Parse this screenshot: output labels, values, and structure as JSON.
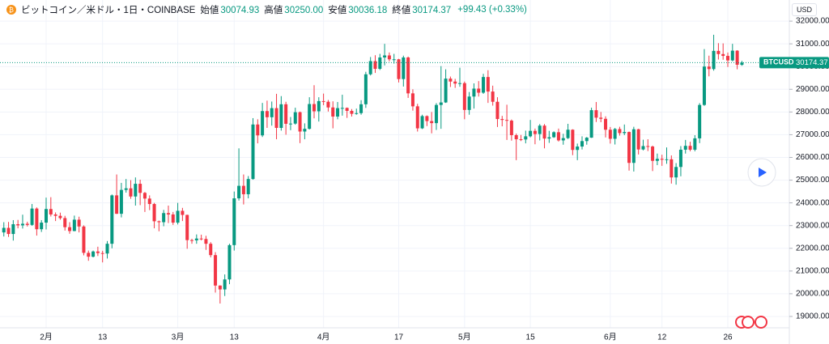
{
  "chart_data": {
    "type": "candlestick",
    "title": "ビットコイン／米ドル・1日・COINBASE",
    "ohlc_header": [
      {
        "label": "始値",
        "value": "30074.93"
      },
      {
        "label": "高値",
        "value": "30250.00"
      },
      {
        "label": "安値",
        "value": "30036.18"
      },
      {
        "label": "終値",
        "value": "30174.37"
      }
    ],
    "change": "+99.43 (+0.33%)",
    "currency": "USD",
    "symbol": "BTCUSD",
    "up_color": "#089981",
    "down_color": "#f23645",
    "grid": true,
    "ylim": [
      18500,
      32930
    ],
    "yticks": [
      {
        "value": 19000,
        "label": "19000.00"
      },
      {
        "value": 20000,
        "label": "20000.00"
      },
      {
        "value": 21000,
        "label": "21000.00"
      },
      {
        "value": 22000,
        "label": "22000.00"
      },
      {
        "value": 23000,
        "label": "23000.00"
      },
      {
        "value": 24000,
        "label": "24000.00"
      },
      {
        "value": 25000,
        "label": "25000.00"
      },
      {
        "value": 26000,
        "label": "26000.00"
      },
      {
        "value": 27000,
        "label": "27000.00"
      },
      {
        "value": 28000,
        "label": "28000.00"
      },
      {
        "value": 29000,
        "label": "29000.00"
      },
      {
        "value": 30000,
        "label": "30000.00"
      },
      {
        "value": 31000,
        "label": "31000.00"
      },
      {
        "value": 32000,
        "label": "32000.00"
      }
    ],
    "categories": [
      null,
      null,
      null,
      null,
      null,
      null,
      null,
      null,
      null,
      "2月",
      null,
      null,
      null,
      null,
      null,
      null,
      null,
      null,
      null,
      null,
      null,
      "13",
      null,
      null,
      null,
      null,
      null,
      null,
      null,
      null,
      null,
      null,
      null,
      null,
      null,
      null,
      null,
      "3月",
      null,
      null,
      null,
      null,
      null,
      null,
      null,
      null,
      null,
      null,
      null,
      "13",
      null,
      null,
      null,
      null,
      null,
      null,
      null,
      null,
      null,
      null,
      null,
      null,
      null,
      null,
      null,
      null,
      null,
      null,
      "4月",
      null,
      null,
      null,
      null,
      null,
      null,
      null,
      null,
      null,
      null,
      null,
      null,
      null,
      null,
      null,
      "17",
      null,
      null,
      null,
      null,
      null,
      null,
      null,
      null,
      null,
      null,
      null,
      null,
      null,
      "5月",
      null,
      null,
      null,
      null,
      null,
      null,
      null,
      null,
      null,
      null,
      null,
      null,
      null,
      "15",
      null,
      null,
      null,
      null,
      null,
      null,
      null,
      null,
      null,
      null,
      null,
      null,
      null,
      null,
      null,
      null,
      "6月",
      null,
      null,
      null,
      null,
      null,
      null,
      null,
      null,
      null,
      null,
      "12",
      null,
      null,
      null,
      null,
      null,
      null,
      null,
      null,
      null,
      null,
      null,
      null,
      null,
      "26",
      null,
      null,
      null
    ],
    "open": [
      22700,
      22900,
      22630,
      23060,
      23010,
      23080,
      23030,
      23750,
      22840,
      23130,
      23730,
      23490,
      23430,
      23330,
      22930,
      22760,
      23260,
      22960,
      21800,
      21630,
      21860,
      21790,
      21770,
      22200,
      24330,
      23520,
      24570,
      24640,
      24280,
      24840,
      24440,
      24190,
      23950,
      23190,
      23150,
      23550,
      23490,
      23130,
      23650,
      23470,
      22360,
      22350,
      22430,
      22410,
      22200,
      21700,
      20360,
      20190,
      20630,
      22140,
      24200,
      24750,
      24380,
      25050,
      27450,
      26970,
      28040,
      27770,
      28170,
      27300,
      28340,
      27480,
      27490,
      27990,
      27140,
      27260,
      28350,
      28030,
      28480,
      28450,
      28200,
      27800,
      28170,
      28180,
      28050,
      27920,
      27950,
      28340,
      29660,
      30240,
      29900,
      30400,
      30490,
      30320,
      30320,
      29450,
      30400,
      28820,
      28250,
      27280,
      27820,
      27600,
      27510,
      28310,
      28420,
      29470,
      29340,
      29250,
      29270,
      28090,
      28680,
      29030,
      28850,
      29540,
      28900,
      28450,
      27690,
      27650,
      27620,
      26980,
      26800,
      26790,
      26930,
      27170,
      27030,
      27400,
      26830,
      26890,
      27110,
      26750,
      26850,
      27220,
      26330,
      26480,
      26720,
      26870,
      28080,
      27750,
      27700,
      27220,
      26820,
      27250,
      27070,
      27120,
      25760,
      27240,
      26350,
      26500,
      26480,
      25850,
      25940,
      25900,
      25920,
      25120,
      25580,
      26340,
      26510,
      26340,
      26840,
      28310,
      30000,
      29890,
      30690,
      30550,
      30470,
      30270,
      30700,
      30074.93
    ],
    "high": [
      23150,
      23160,
      23240,
      23250,
      23480,
      23170,
      23950,
      23800,
      23240,
      24230,
      24250,
      23580,
      23570,
      23430,
      23150,
      23440,
      23390,
      23010,
      21900,
      21900,
      22070,
      21890,
      22320,
      24370,
      25250,
      24880,
      25050,
      25000,
      25120,
      25020,
      24480,
      24330,
      24000,
      23220,
      23690,
      23880,
      23600,
      24000,
      23780,
      23480,
      22420,
      22610,
      22600,
      22550,
      22270,
      21830,
      20370,
      20850,
      22200,
      24500,
      26400,
      25250,
      25180,
      27730,
      27680,
      28400,
      28500,
      28460,
      28800,
      28700,
      28450,
      27780,
      28190,
      28020,
      27500,
      28650,
      29180,
      28650,
      28810,
      28530,
      28470,
      28440,
      28760,
      28200,
      28130,
      28150,
      28520,
      29770,
      30420,
      30500,
      30560,
      31000,
      30620,
      30560,
      30340,
      30480,
      30440,
      29000,
      28360,
      27880,
      27850,
      28000,
      28390,
      30020,
      29880,
      29560,
      29460,
      29950,
      29340,
      28880,
      29260,
      29360,
      29680,
      29840,
      29160,
      28650,
      27830,
      28320,
      27670,
      27050,
      26990,
      27180,
      27650,
      27270,
      27470,
      27470,
      27170,
      27150,
      27270,
      27040,
      27480,
      27240,
      26610,
      26930,
      26900,
      28190,
      28440,
      28000,
      27810,
      27340,
      27300,
      27350,
      27450,
      27140,
      27350,
      27260,
      26780,
      26800,
      26520,
      26170,
      26120,
      26440,
      26090,
      25750,
      26500,
      26770,
      26690,
      26980,
      28390,
      30770,
      30480,
      31400,
      31030,
      31020,
      30620,
      31000,
      30720,
      30250.0
    ],
    "low": [
      22520,
      22500,
      22340,
      22880,
      22870,
      22960,
      22990,
      22560,
      22720,
      22830,
      23400,
      23200,
      23260,
      22780,
      22640,
      22750,
      22700,
      21690,
      21450,
      21600,
      21660,
      21380,
      21550,
      22000,
      23510,
      23360,
      24450,
      24180,
      23880,
      23900,
      23600,
      23680,
      22880,
      22750,
      22970,
      23110,
      23030,
      23050,
      23200,
      21980,
      22200,
      22200,
      22350,
      21930,
      21600,
      20050,
      19570,
      19900,
      20420,
      21900,
      24100,
      23930,
      24200,
      25020,
      26620,
      26900,
      27300,
      27400,
      26800,
      27180,
      27000,
      27200,
      27440,
      26630,
      26800,
      27230,
      27720,
      27580,
      28300,
      28020,
      27280,
      27680,
      27840,
      27740,
      27800,
      27880,
      27880,
      28180,
      29610,
      29720,
      29850,
      30050,
      30230,
      30130,
      29300,
      29120,
      28620,
      28060,
      27140,
      27250,
      27380,
      27060,
      27210,
      27260,
      28400,
      29100,
      29060,
      29110,
      27680,
      27880,
      28150,
      28680,
      28800,
      28400,
      28280,
      27340,
      27370,
      26770,
      26740,
      25880,
      26720,
      26620,
      26880,
      26580,
      26750,
      26400,
      26640,
      26860,
      26700,
      26560,
      26810,
      26100,
      25880,
      26350,
      26560,
      26860,
      27560,
      27550,
      26880,
      26610,
      26570,
      26960,
      26980,
      25420,
      25380,
      26130,
      26310,
      26280,
      25400,
      25660,
      25630,
      25720,
      24850,
      24800,
      25170,
      26170,
      26270,
      26270,
      26630,
      28270,
      29570,
      29820,
      30310,
      30300,
      29980,
      30230,
      29880,
      30036.18
    ],
    "close": [
      22900,
      22630,
      23060,
      23010,
      23080,
      23030,
      23750,
      22840,
      23130,
      23730,
      23490,
      23430,
      23330,
      22930,
      22760,
      23260,
      22960,
      21800,
      21630,
      21860,
      21790,
      21770,
      22200,
      24330,
      23520,
      24570,
      24640,
      24280,
      24840,
      24440,
      24190,
      23950,
      23190,
      23150,
      23550,
      23490,
      23130,
      23650,
      23470,
      22360,
      22350,
      22430,
      22410,
      22200,
      21700,
      20360,
      20190,
      20630,
      22140,
      24200,
      24750,
      24380,
      25050,
      27450,
      26970,
      28040,
      27770,
      28170,
      27300,
      28340,
      27480,
      27490,
      27990,
      27140,
      27260,
      28350,
      28030,
      28480,
      28450,
      28200,
      27800,
      28170,
      28180,
      28050,
      27920,
      27950,
      28340,
      29660,
      30240,
      29900,
      30400,
      30490,
      30320,
      30320,
      29450,
      30400,
      28820,
      28250,
      27280,
      27820,
      27600,
      27510,
      28310,
      28420,
      29470,
      29340,
      29250,
      29270,
      28090,
      28680,
      29030,
      28850,
      29540,
      28900,
      28450,
      27690,
      27650,
      27620,
      26980,
      26800,
      26790,
      26930,
      27170,
      27030,
      27400,
      26830,
      26890,
      27110,
      26750,
      26850,
      27220,
      26330,
      26480,
      26720,
      26870,
      28080,
      27750,
      27700,
      27220,
      26820,
      27250,
      27070,
      27120,
      25760,
      27240,
      26350,
      26500,
      26480,
      25850,
      25940,
      25900,
      25920,
      25120,
      25580,
      26340,
      26510,
      26340,
      26840,
      28310,
      30000,
      29890,
      30690,
      30550,
      30470,
      30270,
      30700,
      30080,
      30174.37
    ]
  }
}
